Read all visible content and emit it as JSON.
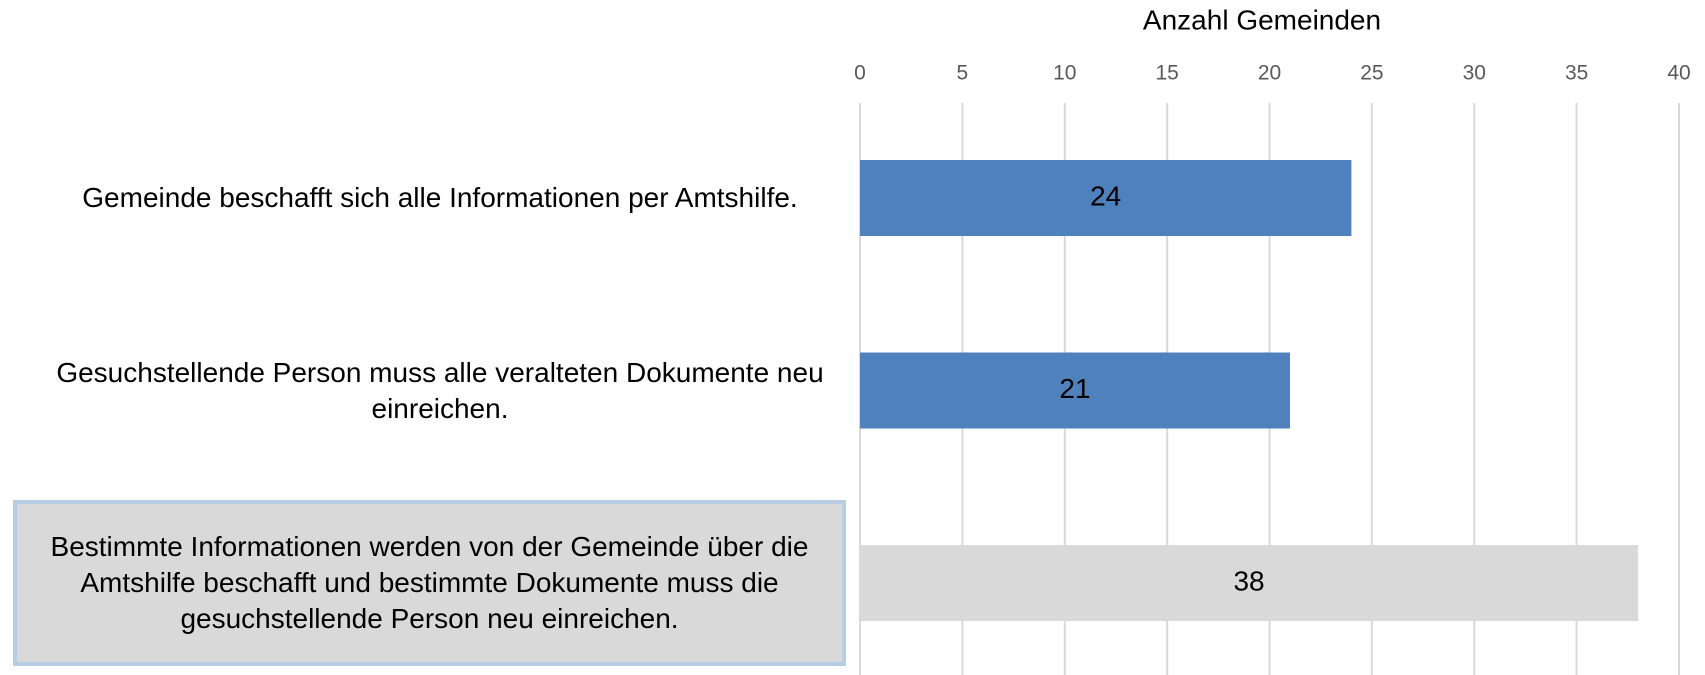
{
  "chart_data": {
    "type": "barh",
    "x_label": "Anzahl Gemeinden",
    "categories": [
      "Gemeinde beschafft sich alle Informationen per Amtshilfe.",
      "Gesuchstellende Person muss alle veralteten Dokumente neu einreichen.",
      "Bestimmte Informationen werden von der Gemeinde über die Amtshilfe beschafft und bestimmte Dokumente muss die gesuchstellende Person neu einreichen."
    ],
    "values": [
      24,
      21,
      38
    ],
    "colors": [
      "#4f81bd",
      "#4f81bd",
      "#d9d9d9"
    ],
    "highlighted_category": 2,
    "xlim": [
      0,
      40
    ],
    "xticks": [
      0,
      5,
      10,
      15,
      20,
      25,
      30,
      35,
      40
    ],
    "grid": true
  }
}
